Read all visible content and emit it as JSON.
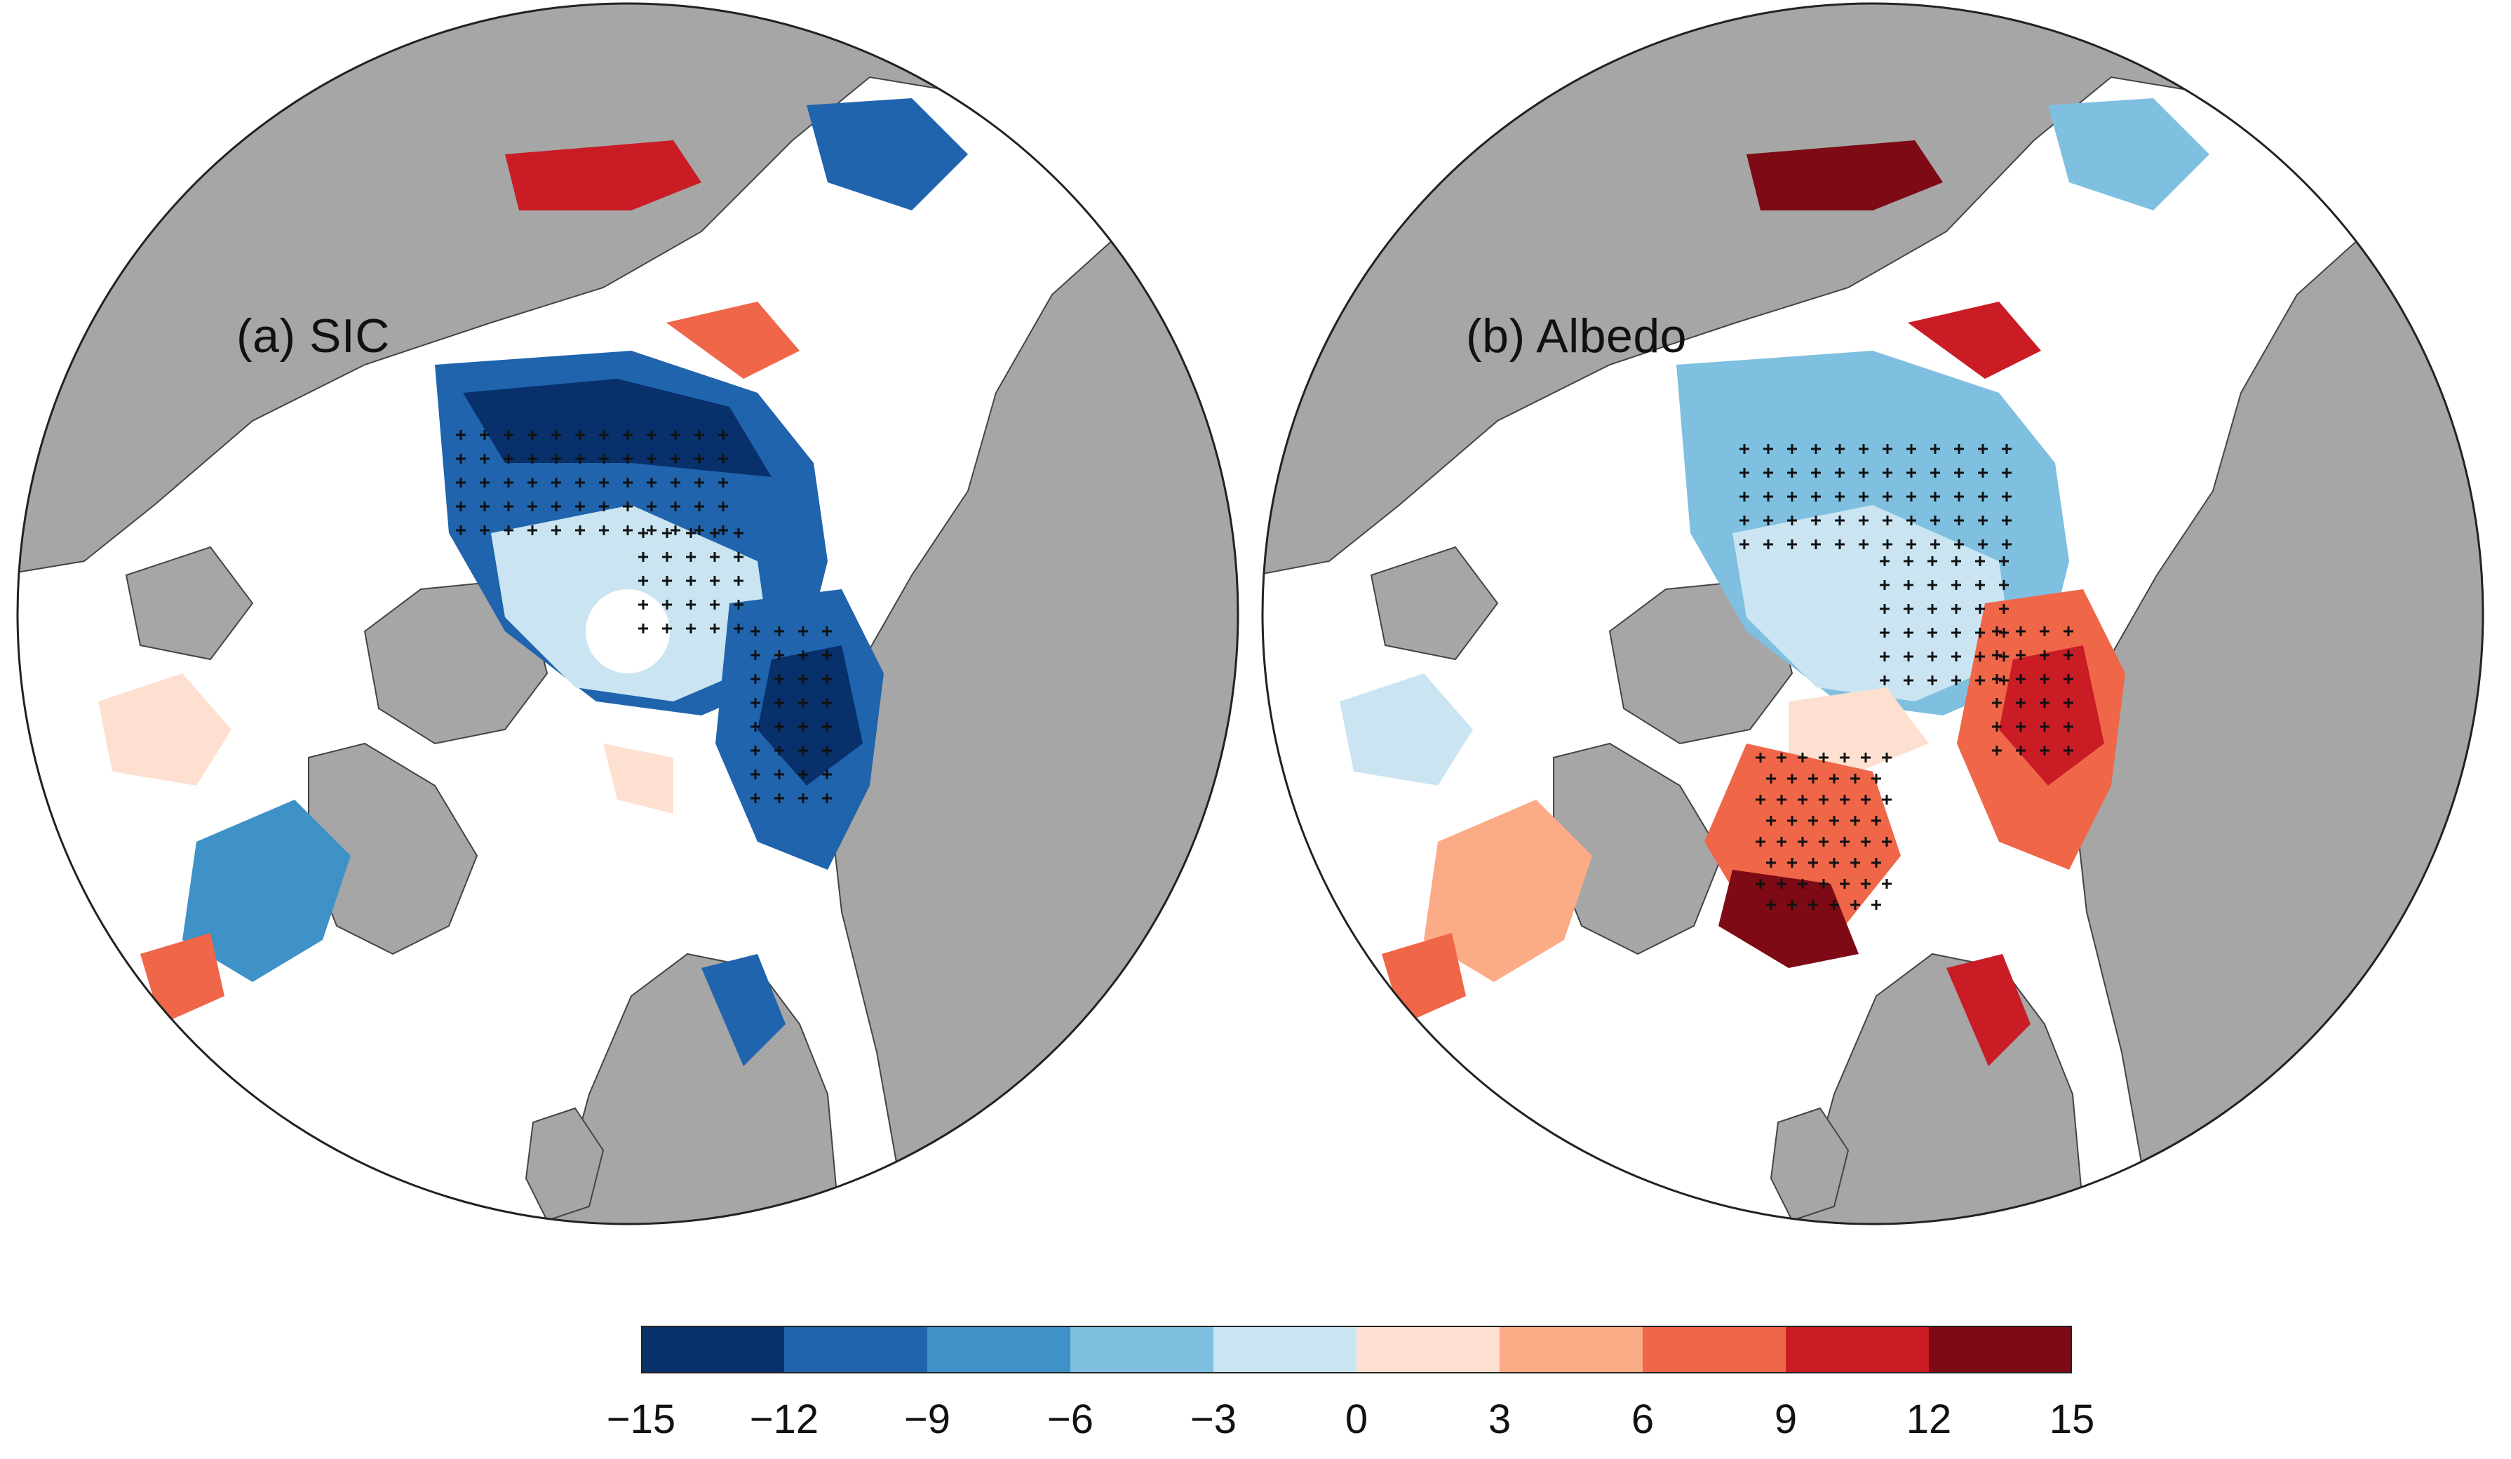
{
  "panels": [
    {
      "id": "a",
      "label": "(a) SIC"
    },
    {
      "id": "b",
      "label": "(b) Albedo"
    }
  ],
  "colorbar": {
    "colors": [
      "#08306b",
      "#1f64ad",
      "#3e92c8",
      "#7fbfe0",
      "#cae5f1",
      "#fde0cf",
      "#fbab86",
      "#ef6649",
      "#c91c25",
      "#7d0a15"
    ],
    "ticks": [
      "−15",
      "−12",
      "−9",
      "−6",
      "−3",
      "0",
      "3",
      "6",
      "9",
      "12",
      "15"
    ]
  },
  "style": {
    "land": "#a6a6a6",
    "ocean": "#ffffff",
    "outline": "#222222",
    "stipple": "#111111"
  }
}
